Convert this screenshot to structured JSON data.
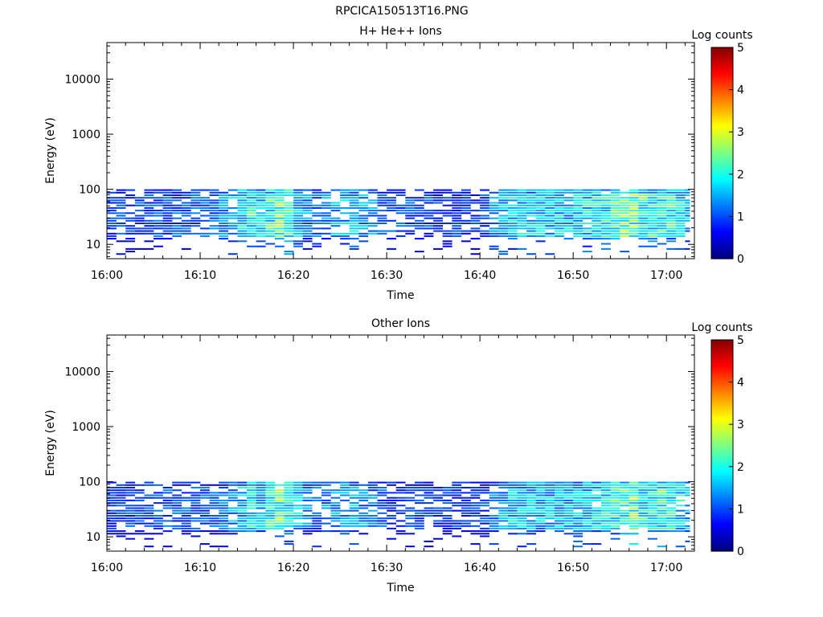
{
  "page": {
    "title": "RPCICA150513T16.PNG"
  },
  "colors": {
    "colormap": [
      "#00007f",
      "#0000ff",
      "#007fff",
      "#00ffff",
      "#7fff7f",
      "#ffff00",
      "#ff7f00",
      "#ff0000",
      "#7f0000"
    ],
    "axis": "#000000",
    "background": "#ffffff"
  },
  "chart_data": [
    {
      "type": "heatmap",
      "title": "H+ He++ Ions",
      "xlabel": "Time",
      "ylabel": "Energy (eV)",
      "x_tick_labels": [
        "16:00",
        "16:10",
        "16:20",
        "16:30",
        "16:40",
        "16:50",
        "17:00"
      ],
      "x_range_minutes": [
        0,
        63
      ],
      "y_scale": "log",
      "y_tick_labels": [
        "10",
        "100",
        "1000",
        "10000"
      ],
      "y_range": [
        5.5,
        46000
      ],
      "colorbar": {
        "label": "Log counts",
        "range": [
          0,
          5
        ],
        "tick_labels": [
          "0",
          "1",
          "2",
          "3",
          "4",
          "5"
        ]
      },
      "activity_profile": [
        {
          "t": 0,
          "v": 1.0
        },
        {
          "t": 1,
          "v": 1.1
        },
        {
          "t": 5,
          "v": 1.2
        },
        {
          "t": 12,
          "v": 1.3
        },
        {
          "t": 15.5,
          "v": 2.3
        },
        {
          "t": 16.5,
          "v": 2.0
        },
        {
          "t": 18.8,
          "v": 3.0
        },
        {
          "t": 20,
          "v": 2.1
        },
        {
          "t": 22,
          "v": 1.3
        },
        {
          "t": 26.5,
          "v": 1.9
        },
        {
          "t": 30,
          "v": 1.2
        },
        {
          "t": 40,
          "v": 1.0
        },
        {
          "t": 43,
          "v": 2.0
        },
        {
          "t": 50,
          "v": 1.9
        },
        {
          "t": 53.5,
          "v": 2.3
        },
        {
          "t": 56.5,
          "v": 2.9
        },
        {
          "t": 58,
          "v": 2.2
        },
        {
          "t": 60,
          "v": 2.6
        },
        {
          "t": 62,
          "v": 2.0
        },
        {
          "t": 63,
          "v": 1.5
        }
      ]
    },
    {
      "type": "heatmap",
      "title": "Other Ions",
      "xlabel": "Time",
      "ylabel": "Energy (eV)",
      "x_tick_labels": [
        "16:00",
        "16:10",
        "16:20",
        "16:30",
        "16:40",
        "16:50",
        "17:00"
      ],
      "x_range_minutes": [
        0,
        63
      ],
      "y_scale": "log",
      "y_tick_labels": [
        "10",
        "100",
        "1000",
        "10000"
      ],
      "y_range": [
        5.5,
        46000
      ],
      "colorbar": {
        "label": "Log counts",
        "range": [
          0,
          5
        ],
        "tick_labels": [
          "0",
          "1",
          "2",
          "3",
          "4",
          "5"
        ]
      },
      "activity_profile": [
        {
          "t": 0,
          "v": 1.0
        },
        {
          "t": 1,
          "v": 1.1
        },
        {
          "t": 5,
          "v": 1.2
        },
        {
          "t": 12,
          "v": 1.2
        },
        {
          "t": 15.5,
          "v": 2.2
        },
        {
          "t": 16.5,
          "v": 1.9
        },
        {
          "t": 18.8,
          "v": 2.9
        },
        {
          "t": 20,
          "v": 2.0
        },
        {
          "t": 22,
          "v": 1.3
        },
        {
          "t": 26.5,
          "v": 1.8
        },
        {
          "t": 30,
          "v": 1.1
        },
        {
          "t": 40,
          "v": 1.0
        },
        {
          "t": 43,
          "v": 1.9
        },
        {
          "t": 50,
          "v": 1.8
        },
        {
          "t": 53.5,
          "v": 2.2
        },
        {
          "t": 56.5,
          "v": 2.8
        },
        {
          "t": 58,
          "v": 2.1
        },
        {
          "t": 60,
          "v": 2.5
        },
        {
          "t": 62,
          "v": 1.9
        },
        {
          "t": 63,
          "v": 1.5
        }
      ]
    }
  ]
}
